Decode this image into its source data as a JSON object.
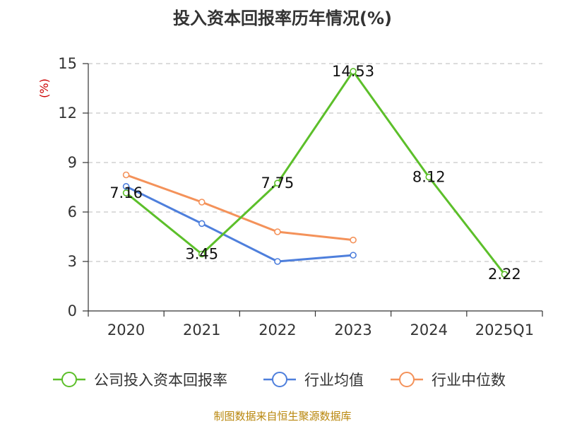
{
  "chart_data": {
    "type": "line",
    "title": "投入资本回报率历年情况(%)",
    "ylabel": "(%)",
    "categories": [
      "2020",
      "2021",
      "2022",
      "2023",
      "2024",
      "2025Q1"
    ],
    "ylim": [
      0,
      15
    ],
    "yticks": [
      0,
      3,
      6,
      9,
      12,
      15
    ],
    "grid": true,
    "legend_position": "bottom",
    "series": [
      {
        "name": "公司投入资本回报率",
        "color": "#5cbf2a",
        "values": [
          7.16,
          3.45,
          7.75,
          14.53,
          8.12,
          2.22
        ],
        "show_labels": true
      },
      {
        "name": "行业均值",
        "color": "#4e7fdc",
        "values": [
          7.55,
          5.3,
          3.0,
          3.38,
          null,
          null
        ],
        "show_labels": false
      },
      {
        "name": "行业中位数",
        "color": "#f4925a",
        "values": [
          8.25,
          6.6,
          4.8,
          4.3,
          null,
          null
        ],
        "show_labels": false
      }
    ]
  },
  "source_text": "制图数据来自恒生聚源数据库"
}
